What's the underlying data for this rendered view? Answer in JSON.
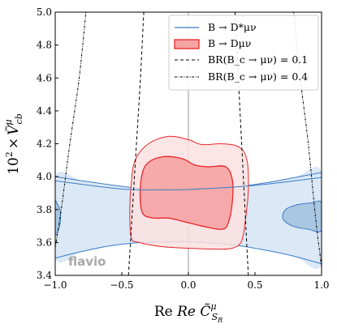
{
  "chart_data": {
    "type": "contour",
    "xlim": [
      -1.0,
      1.0
    ],
    "ylim": [
      3.4,
      5.0
    ],
    "x_ticks": [
      "−1.0",
      "−0.5",
      "0.0",
      "0.5",
      "1.0"
    ],
    "y_ticks": [
      "3.4",
      "3.6",
      "3.8",
      "4.0",
      "4.2",
      "4.4",
      "4.6",
      "4.8",
      "5.0"
    ],
    "xlabel": "Re C̃",
    "xlabel_sup": "μ",
    "xlabel_sub": "S",
    "xlabel_subsub": "R",
    "ylabel_prefix": "10",
    "ylabel_prefix_sup": "2",
    "ylabel_times": "×",
    "ylabel_symbol": "Ṽ",
    "ylabel_sup": "μ",
    "ylabel_sub": "cb",
    "watermark": "flavio",
    "legend": {
      "placement": "top-right",
      "entries": [
        {
          "name": "B → D*μν",
          "style": "line",
          "color": "#3b7dc4"
        },
        {
          "name": "B → Dμν",
          "style": "filled",
          "color": "#e8262a"
        },
        {
          "name": "BR(B_c → μν) = 0.1",
          "style": "dashed",
          "color": "#000000"
        },
        {
          "name": "BR(B_c → μν) = 0.4",
          "style": "dotted-dashed",
          "color": "#000000"
        }
      ]
    },
    "series": [
      {
        "name": "B → D*μν",
        "color": "#3b7dc4",
        "fill": "#dbe8f6",
        "fill_inner": "#a9c6e3",
        "outer_contour": [
          [
            -1.0,
            3.505
          ],
          [
            -0.8,
            3.545
          ],
          [
            -0.6,
            3.578
          ],
          [
            -0.4,
            3.597
          ],
          [
            -0.2,
            3.603
          ],
          [
            0.0,
            3.603
          ],
          [
            0.2,
            3.595
          ],
          [
            0.4,
            3.578
          ],
          [
            0.6,
            3.55
          ],
          [
            0.8,
            3.515
          ],
          [
            1.0,
            3.47
          ],
          [
            1.0,
            4.025
          ],
          [
            0.8,
            3.995
          ],
          [
            0.6,
            3.965
          ],
          [
            0.4,
            3.942
          ],
          [
            0.2,
            3.925
          ],
          [
            0.0,
            3.918
          ],
          [
            -0.2,
            3.92
          ],
          [
            -0.4,
            3.932
          ],
          [
            -0.6,
            3.952
          ],
          [
            -0.8,
            3.975
          ],
          [
            -1.0,
            4.0
          ]
        ],
        "inner_contour_left": [
          [
            -1.0,
            3.655
          ],
          [
            -0.97,
            3.69
          ],
          [
            -0.96,
            3.75
          ],
          [
            -0.965,
            3.8
          ],
          [
            -0.985,
            3.835
          ],
          [
            -1.0,
            3.84
          ]
        ],
        "inner_contour_right": [
          [
            1.0,
            3.675
          ],
          [
            0.9,
            3.68
          ],
          [
            0.78,
            3.7
          ],
          [
            0.71,
            3.745
          ],
          [
            0.73,
            3.8
          ],
          [
            0.82,
            3.83
          ],
          [
            0.92,
            3.84
          ],
          [
            1.0,
            3.84
          ]
        ],
        "middle_line": [
          [
            -1.0,
            3.975
          ],
          [
            -0.5,
            3.925
          ],
          [
            -0.2,
            3.92
          ],
          [
            0.0,
            3.922
          ],
          [
            0.4,
            3.94
          ],
          [
            0.7,
            3.965
          ],
          [
            1.0,
            3.995
          ]
        ]
      },
      {
        "name": "B → Dμν",
        "color": "#e8262a",
        "fill_outer": "#fbe0e0",
        "fill_inner": "#f5a3a3",
        "outer_contour": [
          [
            -0.43,
            3.63
          ],
          [
            -0.37,
            3.6
          ],
          [
            -0.2,
            3.575
          ],
          [
            0.0,
            3.565
          ],
          [
            0.2,
            3.56
          ],
          [
            0.33,
            3.565
          ],
          [
            0.4,
            3.61
          ],
          [
            0.43,
            3.75
          ],
          [
            0.45,
            3.92
          ],
          [
            0.44,
            4.1
          ],
          [
            0.38,
            4.18
          ],
          [
            0.25,
            4.2
          ],
          [
            0.1,
            4.195
          ],
          [
            0.0,
            4.225
          ],
          [
            -0.15,
            4.245
          ],
          [
            -0.3,
            4.2
          ],
          [
            -0.4,
            4.1
          ],
          [
            -0.43,
            3.95
          ],
          [
            -0.44,
            3.8
          ]
        ],
        "inner_contour": [
          [
            -0.35,
            3.79
          ],
          [
            -0.28,
            3.75
          ],
          [
            -0.15,
            3.748
          ],
          [
            -0.05,
            3.73
          ],
          [
            0.1,
            3.7
          ],
          [
            0.25,
            3.68
          ],
          [
            0.3,
            3.72
          ],
          [
            0.33,
            3.85
          ],
          [
            0.33,
            3.98
          ],
          [
            0.28,
            4.06
          ],
          [
            0.15,
            4.06
          ],
          [
            0.05,
            4.07
          ],
          [
            -0.05,
            4.11
          ],
          [
            -0.2,
            4.12
          ],
          [
            -0.32,
            4.07
          ],
          [
            -0.36,
            3.95
          ]
        ]
      },
      {
        "name": "BR(B_c → μν) = 0.1",
        "color": "#000000",
        "style": "dashed",
        "curves": [
          [
            [
              -0.45,
              3.4
            ],
            [
              -0.42,
              3.8
            ],
            [
              -0.39,
              4.2
            ],
            [
              -0.36,
              4.6
            ],
            [
              -0.335,
              5.0
            ]
          ],
          [
            [
              0.45,
              3.4
            ],
            [
              0.425,
              3.8
            ],
            [
              0.4,
              4.2
            ],
            [
              0.375,
              4.6
            ],
            [
              0.35,
              5.0
            ]
          ]
        ]
      },
      {
        "name": "BR(B_c → μν) = 0.4",
        "color": "#000000",
        "style": "dotted-dashed",
        "curves": [
          [
            [
              -1.0,
              3.57
            ],
            [
              -0.955,
              3.8
            ],
            [
              -0.89,
              4.2
            ],
            [
              -0.82,
              4.6
            ],
            [
              -0.77,
              5.0
            ]
          ],
          [
            [
              1.0,
              3.45
            ],
            [
              0.955,
              3.75
            ],
            [
              0.9,
              4.2
            ],
            [
              0.84,
              4.6
            ],
            [
              0.79,
              5.0
            ]
          ]
        ]
      }
    ]
  }
}
